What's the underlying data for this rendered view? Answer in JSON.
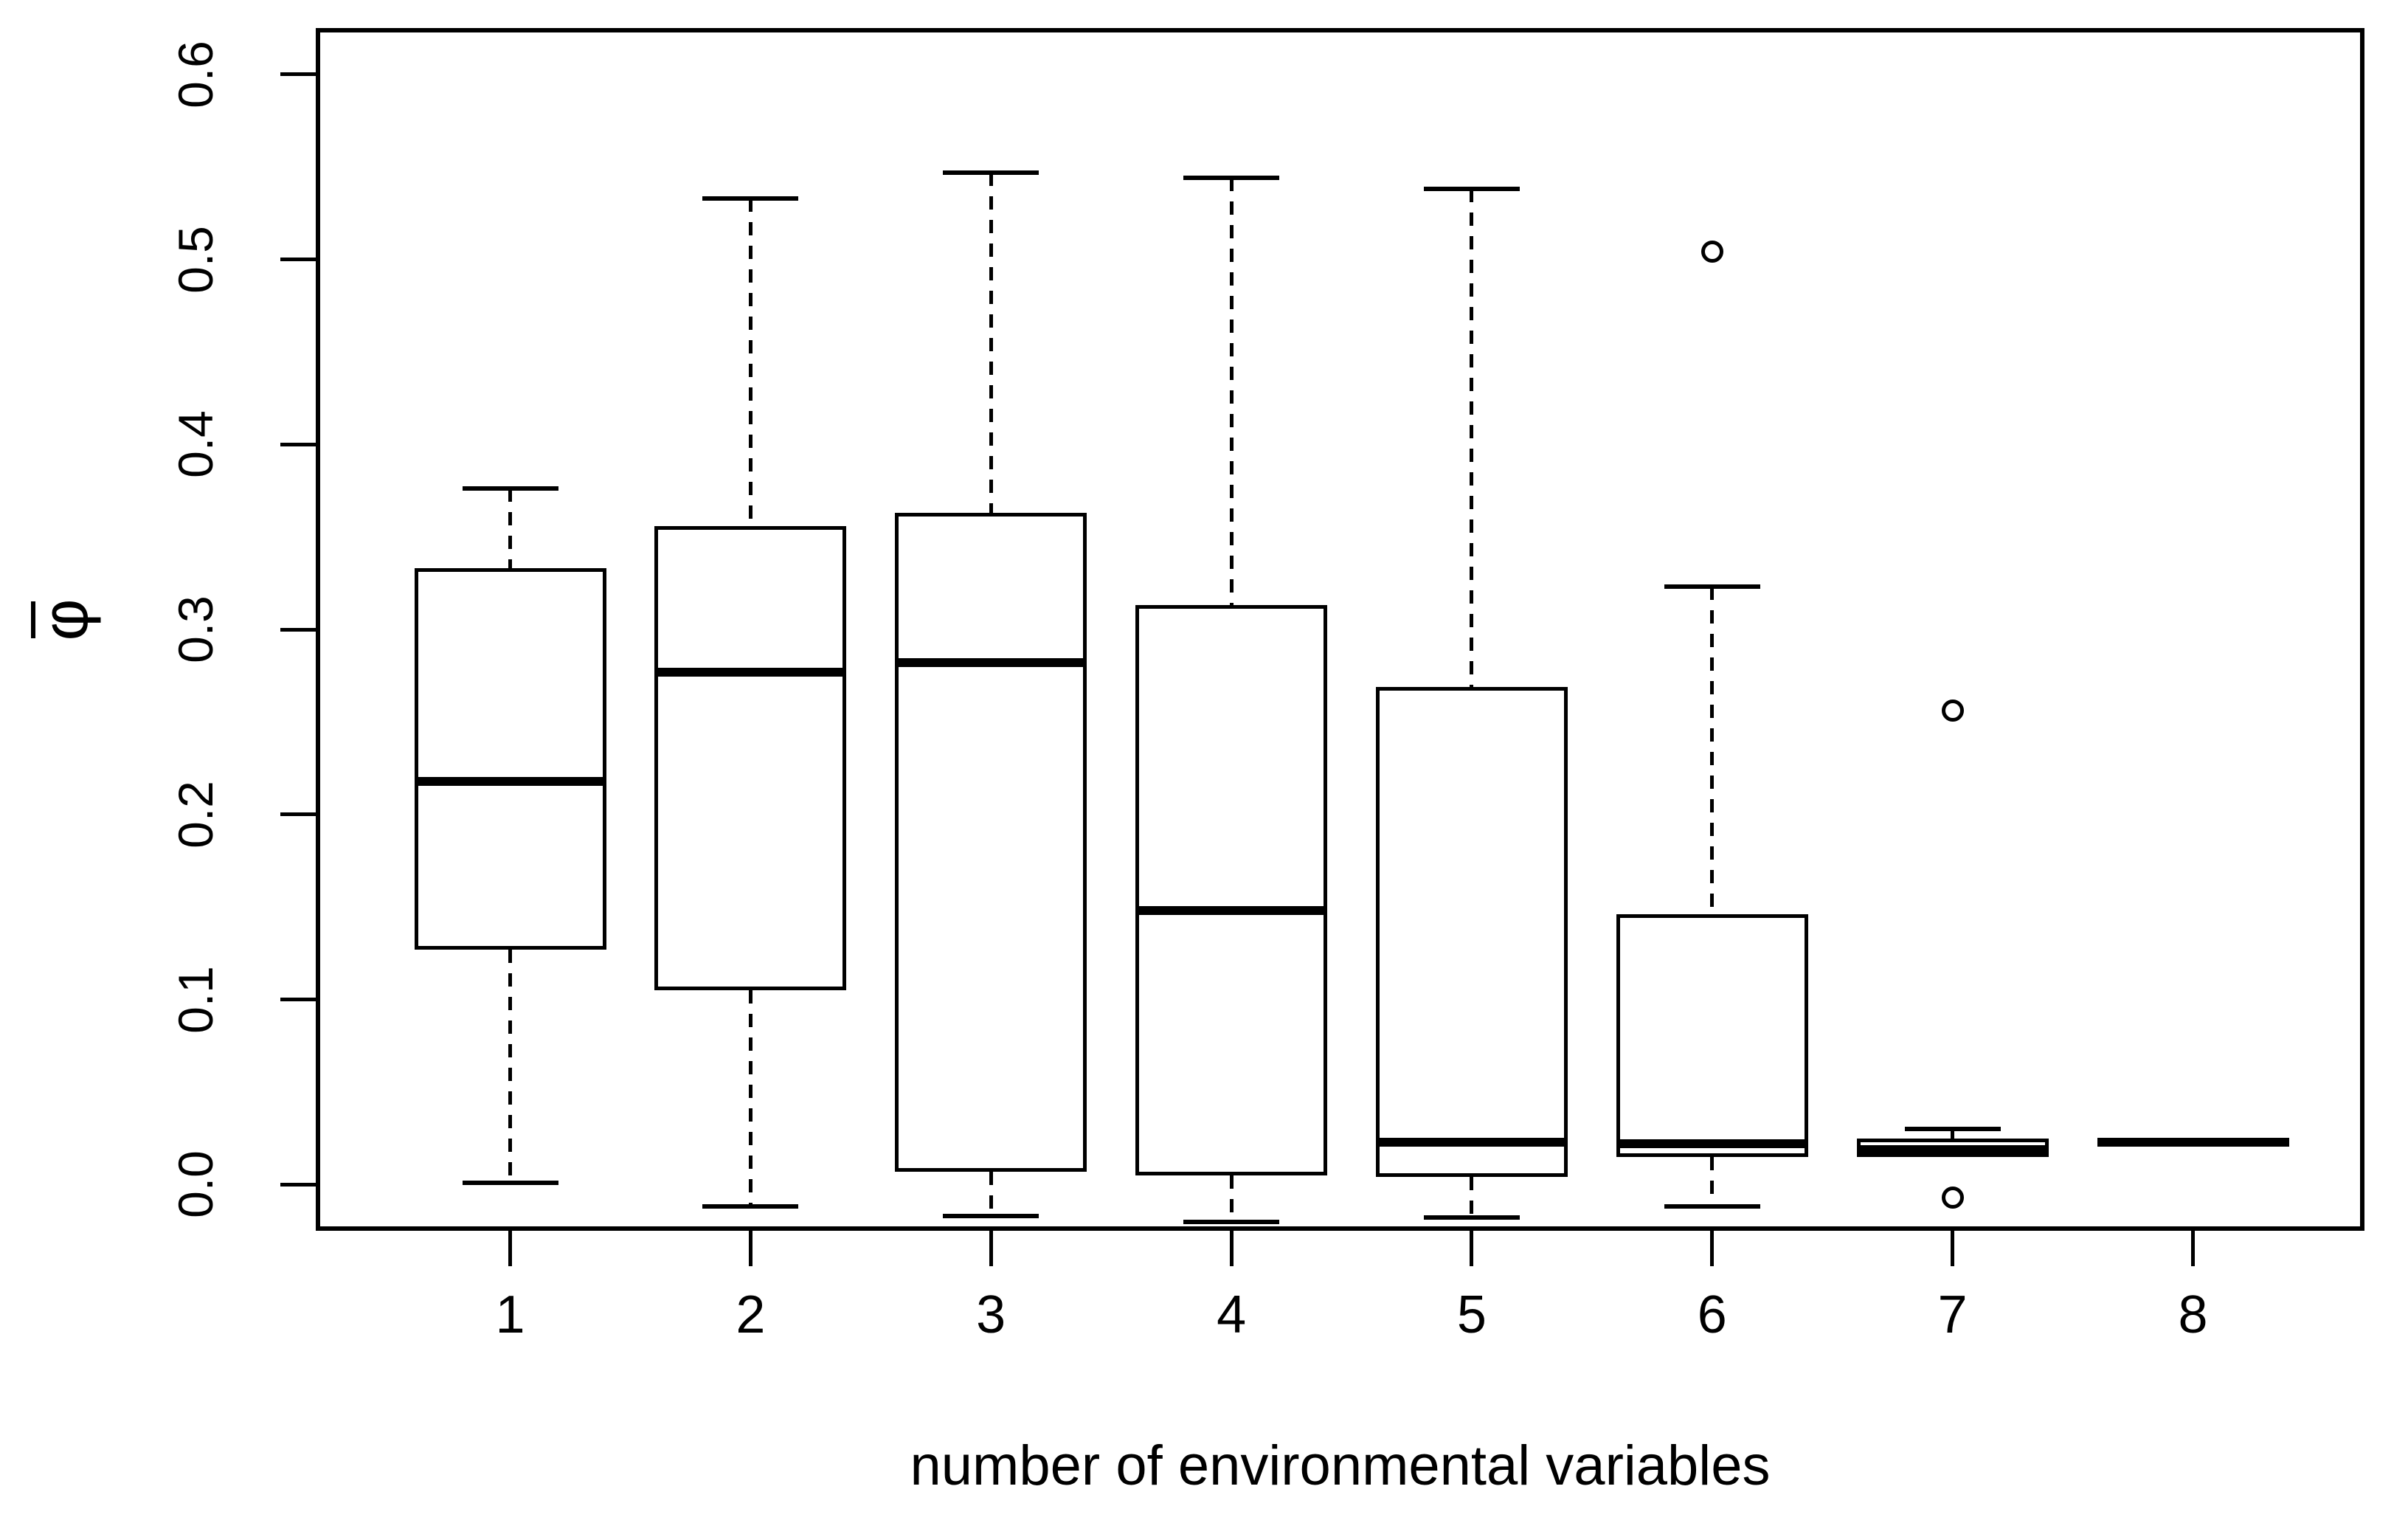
{
  "figure": {
    "background": "#ffffff",
    "ink": "#000000"
  },
  "chart_data": {
    "type": "boxplot",
    "title": "",
    "xlabel": "number of environmental variables",
    "ylabel": "φ",
    "ylabel_decoration": "overbar",
    "categories": [
      "1",
      "2",
      "3",
      "4",
      "5",
      "6",
      "7",
      "8"
    ],
    "ylim": [
      -0.025,
      0.625
    ],
    "yticks": {
      "values": [
        0.0,
        0.1,
        0.2,
        0.3,
        0.4,
        0.5,
        0.6
      ],
      "labels": [
        "0.0",
        "0.1",
        "0.2",
        "0.3",
        "0.4",
        "0.5",
        "0.6"
      ]
    },
    "grid": false,
    "legend": null,
    "groups": [
      {
        "category": "1",
        "whisker_low": 0.001,
        "q1": 0.127,
        "median": 0.218,
        "q3": 0.333,
        "whisker_high": 0.376,
        "outliers": []
      },
      {
        "category": "2",
        "whisker_low": -0.012,
        "q1": 0.105,
        "median": 0.277,
        "q3": 0.356,
        "whisker_high": 0.533,
        "outliers": []
      },
      {
        "category": "3",
        "whisker_low": -0.017,
        "q1": 0.007,
        "median": 0.282,
        "q3": 0.363,
        "whisker_high": 0.547,
        "outliers": []
      },
      {
        "category": "4",
        "whisker_low": -0.02,
        "q1": 0.005,
        "median": 0.148,
        "q3": 0.313,
        "whisker_high": 0.544,
        "outliers": []
      },
      {
        "category": "5",
        "whisker_low": -0.018,
        "q1": 0.004,
        "median": 0.023,
        "q3": 0.269,
        "whisker_high": 0.538,
        "outliers": []
      },
      {
        "category": "6",
        "whisker_low": -0.012,
        "q1": 0.015,
        "median": 0.022,
        "q3": 0.146,
        "whisker_high": 0.323,
        "outliers": [
          0.504
        ]
      },
      {
        "category": "7",
        "whisker_low": 0.015,
        "q1": 0.015,
        "median": 0.019,
        "q3": 0.025,
        "whisker_high": 0.03,
        "outliers": [
          0.256,
          -0.007
        ]
      },
      {
        "category": "8",
        "whisker_low": 0.023,
        "q1": 0.023,
        "median": 0.023,
        "q3": 0.023,
        "whisker_high": 0.023,
        "outliers": []
      }
    ]
  }
}
